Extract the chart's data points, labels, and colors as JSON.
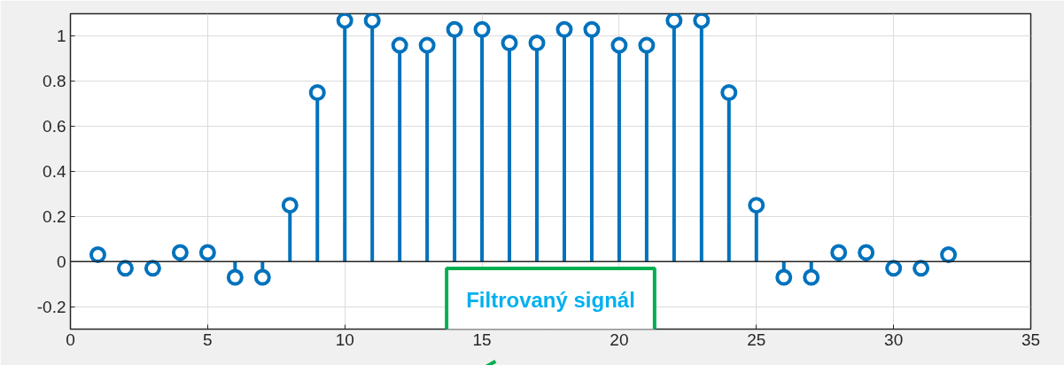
{
  "chart_data": {
    "type": "lollipop",
    "x": [
      1,
      2,
      3,
      4,
      5,
      6,
      7,
      8,
      9,
      10,
      11,
      12,
      13,
      14,
      15,
      16,
      17,
      18,
      19,
      20,
      21,
      22,
      23,
      24,
      25,
      26,
      27,
      28,
      29,
      30,
      31,
      32
    ],
    "values": [
      0.03,
      -0.03,
      -0.03,
      0.04,
      0.04,
      -0.07,
      -0.07,
      0.25,
      0.75,
      1.07,
      1.07,
      0.96,
      0.96,
      1.03,
      1.03,
      0.97,
      0.97,
      1.03,
      1.03,
      0.96,
      0.96,
      1.07,
      1.07,
      0.75,
      0.25,
      -0.07,
      -0.07,
      0.04,
      0.04,
      -0.03,
      -0.03,
      0.03
    ],
    "color": "#0072bd",
    "marker": "circle",
    "xlim": [
      0,
      35
    ],
    "xticks": [
      0,
      5,
      10,
      15,
      20,
      25,
      30,
      35
    ],
    "ylim": [
      -0.3,
      1.1
    ],
    "yticks": [
      -0.2,
      0,
      0.2,
      0.4,
      0.6,
      0.8,
      1
    ],
    "grid": true,
    "ref_lines": [
      {
        "axis": "y",
        "value": 0,
        "color": "#262626"
      }
    ],
    "annotations": [
      "Filtrovaný signál"
    ]
  }
}
